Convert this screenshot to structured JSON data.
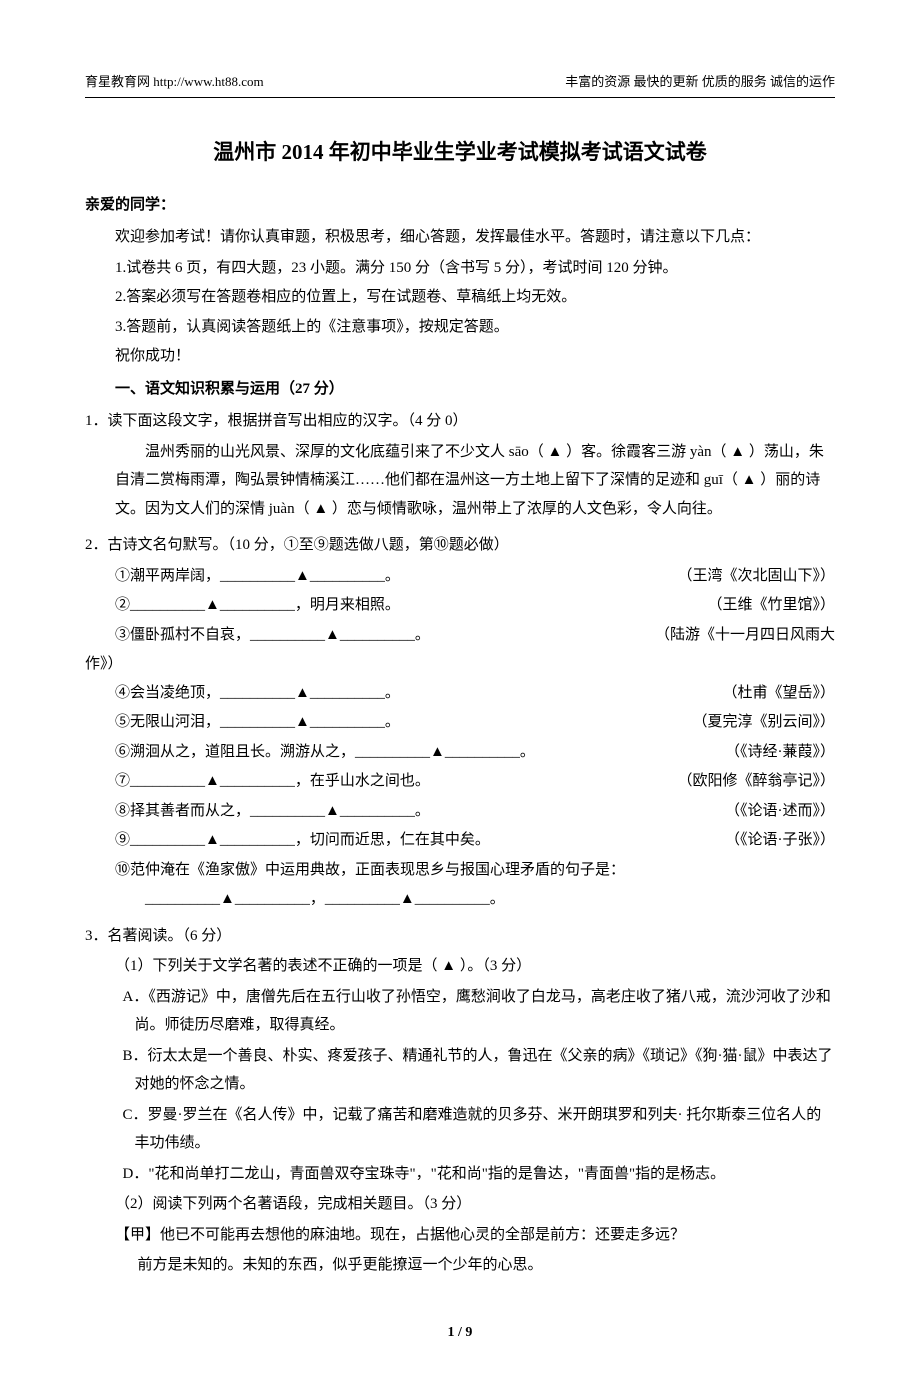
{
  "header": {
    "left": "育星教育网  http://www.ht88.com",
    "right": "丰富的资源  最快的更新  优质的服务  诚信的运作"
  },
  "title": "温州市 2014 年初中毕业生学业考试模拟考试语文试卷",
  "greeting": "亲爱的同学：",
  "intro": "欢迎参加考试！请你认真审题，积极思考，细心答题，发挥最佳水平。答题时，请注意以下几点：",
  "notes": {
    "n1": "1.试卷共 6 页，有四大题，23 小题。满分 150 分（含书写 5 分），考试时间 120 分钟。",
    "n2": "2.答案必须写在答题卷相应的位置上，写在试题卷、草稿纸上均无效。",
    "n3": "3.答题前，认真阅读答题纸上的《注意事项》，按规定答题。",
    "wish": "祝你成功！"
  },
  "section1": "一、语文知识积累与运用（27 分）",
  "q1": {
    "stem": "1．读下面这段文字，根据拼音写出相应的汉字。（4 分 0）",
    "para": "温州秀丽的山光风景、深厚的文化底蕴引来了不少文人 sāo（  ▲  ）客。徐霞客三游 yàn（  ▲  ）荡山，朱自清二赏梅雨潭，陶弘景钟情楠溪江……他们都在温州这一方土地上留下了深情的足迹和 guī（  ▲  ）丽的诗文。因为文人们的深情 juàn（  ▲  ）恋与倾情歌咏，温州带上了浓厚的人文色彩，令人向往。"
  },
  "q2": {
    "stem": "2．古诗文名句默写。（10 分，①至⑨题选做八题，第⑩题必做）",
    "items": [
      {
        "left": "①潮平两岸阔，__________▲__________。",
        "right": "（王湾《次北固山下》）"
      },
      {
        "left": "②__________▲__________，明月来相照。",
        "right": "（王维《竹里馆》）"
      },
      {
        "left": "③僵卧孤村不自哀，__________▲__________。",
        "right": "（陆游《十一月四日风雨大"
      }
    ],
    "wrap": "作》）",
    "items2": [
      {
        "left": "④会当凌绝顶，__________▲__________。",
        "right": "（杜甫《望岳》）"
      },
      {
        "left": "⑤无限山河泪，__________▲__________。",
        "right": "（夏完淳《别云间》）"
      },
      {
        "left": "⑥溯洄从之，道阻且长。溯游从之，__________▲__________。",
        "right": "（《诗经·蒹葭》）"
      },
      {
        "left": "⑦__________▲__________，在乎山水之间也。",
        "right": "（欧阳修《醉翁亭记》）"
      },
      {
        "left": "⑧择其善者而从之，__________▲__________。",
        "right": "（《论语·述而》）"
      },
      {
        "left": "⑨__________▲__________，切问而近思，仁在其中矣。",
        "right": "（《论语·子张》）"
      }
    ],
    "item10a": "⑩范仲淹在《渔家傲》中运用典故，正面表现思乡与报国心理矛盾的句子是：",
    "item10b": "__________▲__________，__________▲__________。"
  },
  "q3": {
    "stem": "3．名著阅读。（6 分）",
    "p1": "（1）下列关于文学名著的表述不正确的一项是（  ▲  ）。（3 分）",
    "optA": "A．《西游记》中，唐僧先后在五行山收了孙悟空，鹰愁涧收了白龙马，高老庄收了猪八戒，流沙河收了沙和尚。师徒历尽磨难，取得真经。",
    "optB": "B．衍太太是一个善良、朴实、疼爱孩子、精通礼节的人，鲁迅在《父亲的病》《琐记》《狗·猫·鼠》中表达了对她的怀念之情。",
    "optC": "C．罗曼·罗兰在《名人传》中，记载了痛苦和磨难造就的贝多芬、米开朗琪罗和列夫· 托尔斯泰三位名人的丰功伟绩。",
    "optD": "D．\"花和尚单打二龙山，青面兽双夺宝珠寺\"，\"花和尚\"指的是鲁达，\"青面兽\"指的是杨志。",
    "p2": "（2）阅读下列两个名著语段，完成相关题目。（3 分）",
    "jiaLabel": "【甲】",
    "jia1": "他已不可能再去想他的麻油地。现在，占据他心灵的全部是前方：还要走多远？",
    "jia2": "前方是未知的。未知的东西，似乎更能撩逗一个少年的心思。"
  },
  "footer": "1 / 9"
}
